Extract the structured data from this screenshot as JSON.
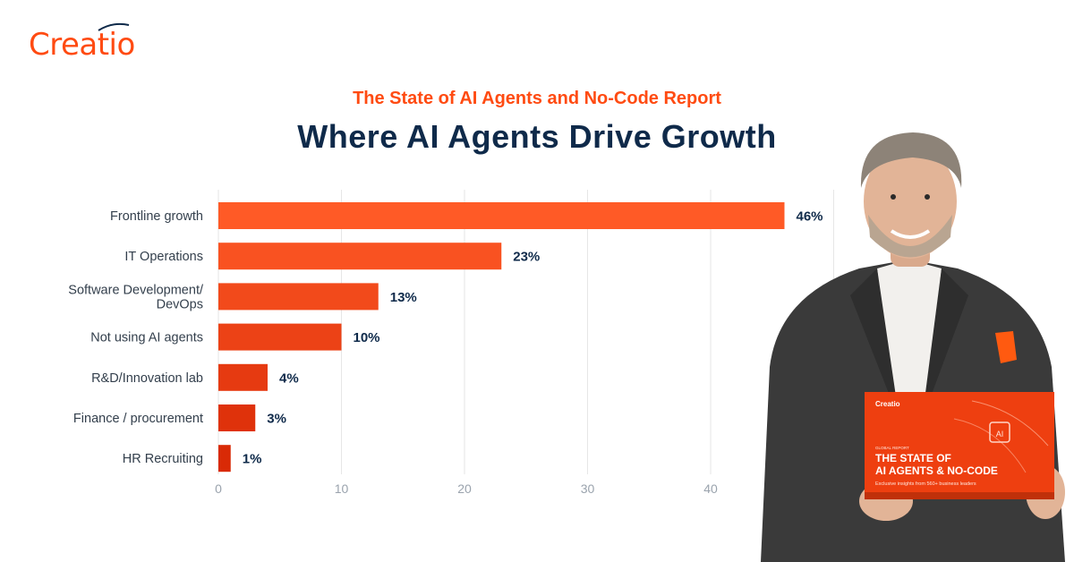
{
  "brand": {
    "logo_text": "Creatio"
  },
  "colors": {
    "accent": "#ff4b12",
    "navy": "#0f2a4a",
    "bar_light": "#ff5a26",
    "bar_dark": "#d92a06"
  },
  "chart_data": {
    "type": "bar",
    "orientation": "horizontal",
    "subtitle": "The State of AI Agents and No-Code Report",
    "title": "Where AI Agents Drive Growth",
    "categories": [
      "Frontline growth",
      "IT Operations",
      "Software Development/ DevOps",
      "Not using AI agents",
      "R&D/Innovation lab",
      "Finance / procurement",
      "HR Recruiting"
    ],
    "category_lines": [
      [
        "Frontline growth"
      ],
      [
        "IT Operations"
      ],
      [
        "Software Development/",
        "DevOps"
      ],
      [
        "Not using AI agents"
      ],
      [
        "R&D/Innovation lab"
      ],
      [
        "Finance / procurement"
      ],
      [
        "HR Recruiting"
      ]
    ],
    "values": [
      46,
      23,
      13,
      10,
      4,
      3,
      1
    ],
    "value_labels": [
      "46%",
      "23%",
      "13%",
      "10%",
      "4%",
      "3%",
      "1%"
    ],
    "xticks": [
      0,
      10,
      20,
      30,
      40
    ],
    "xlim": [
      0,
      50
    ],
    "grid": true,
    "xlabel": "",
    "ylabel": ""
  },
  "report_book": {
    "brand": "Creatio",
    "kicker": "GLOBAL REPORT",
    "title_line1": "THE STATE OF",
    "title_line2": "AI AGENTS & NO-CODE",
    "tagline": "Exclusive insights from 560+ business leaders",
    "chip_label": "AI"
  }
}
